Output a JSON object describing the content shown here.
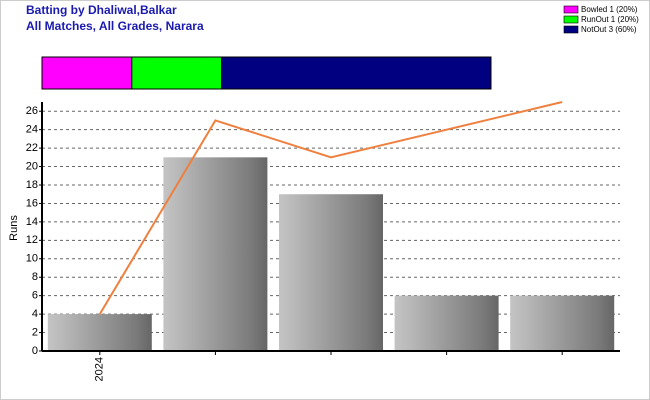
{
  "chart_data": {
    "type": "bar",
    "title": "Batting by Dhaliwal,Balkar",
    "subtitle": "All Matches, All Grades, Narara",
    "y_label": "Runs",
    "categories": [
      "2024",
      null,
      null,
      null,
      null
    ],
    "series": [
      {
        "type": "bar",
        "color": "#a0a0a0",
        "values": [
          4,
          21,
          17,
          6,
          6
        ]
      },
      {
        "type": "line",
        "color": "#ee8040",
        "values": [
          4,
          25,
          21,
          24,
          27
        ]
      }
    ],
    "ylim": [
      0,
      27
    ],
    "yticks": [
      0,
      2,
      4,
      6,
      8,
      10,
      12,
      14,
      16,
      18,
      20,
      22,
      24,
      26
    ],
    "grid": true,
    "breakdown": [
      {
        "label": "Bowled 1 (20%)",
        "value": 20,
        "color": "#ff00ff"
      },
      {
        "label": "RunOut 1 (20%)",
        "value": 20,
        "color": "#00ff00"
      },
      {
        "label": "NotOut 3 (60%)",
        "value": 60,
        "color": "#000080"
      }
    ]
  }
}
